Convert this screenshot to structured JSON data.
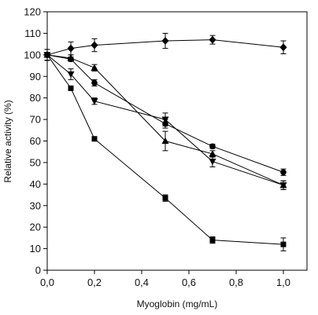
{
  "chart_data": {
    "type": "line",
    "xlabel": "Myoglobin (mg/mL)",
    "ylabel": "Relative activity (%)",
    "xlim": [
      0,
      1.1
    ],
    "ylim": [
      0,
      120
    ],
    "xticks": [
      0,
      0.2,
      0.4,
      0.6,
      0.8,
      1.0
    ],
    "xtick_labels": [
      "0,0",
      "0,2",
      "0,4",
      "0,6",
      "0,8",
      "1,0"
    ],
    "yticks": [
      0,
      10,
      20,
      30,
      40,
      50,
      60,
      70,
      80,
      90,
      100,
      110,
      120
    ],
    "ytick_labels": [
      "0",
      "10",
      "20",
      "30",
      "40",
      "50",
      "60",
      "70",
      "80",
      "90",
      "100",
      "110",
      "120"
    ],
    "grid": false,
    "legend": "none",
    "series": [
      {
        "marker": "diamond",
        "x": [
          0,
          0.1,
          0.2,
          0.5,
          0.7,
          1.0
        ],
        "y": [
          100,
          103,
          104.5,
          106.5,
          107,
          103.5
        ],
        "err": [
          2.5,
          3,
          3,
          3.5,
          2,
          3
        ]
      },
      {
        "marker": "circle",
        "x": [
          0,
          0.1,
          0.2,
          0.5,
          0.7,
          1.0
        ],
        "y": [
          100,
          98,
          87,
          68,
          57.5,
          45.5
        ],
        "err": [
          2.5,
          1,
          1.5,
          2,
          1,
          1.5
        ]
      },
      {
        "marker": "triangle-up",
        "x": [
          0,
          0.1,
          0.2,
          0.5,
          0.7,
          1.0
        ],
        "y": [
          100,
          98.5,
          94,
          60,
          54,
          39.5
        ],
        "err": [
          2.5,
          1.5,
          1.5,
          4.5,
          1.5,
          2
        ]
      },
      {
        "marker": "triangle-down",
        "x": [
          0,
          0.1,
          0.2,
          0.5,
          0.7,
          1.0
        ],
        "y": [
          100,
          91,
          78.5,
          70,
          50.5,
          39.5
        ],
        "err": [
          2.5,
          2.5,
          1.5,
          3,
          2.5,
          2
        ]
      },
      {
        "marker": "square",
        "x": [
          0,
          0.1,
          0.2,
          0.5,
          0.7,
          1.0
        ],
        "y": [
          100,
          84.5,
          61,
          33.5,
          14,
          12
        ],
        "err": [
          2.5,
          1,
          1,
          1.5,
          1.5,
          3
        ]
      }
    ]
  }
}
